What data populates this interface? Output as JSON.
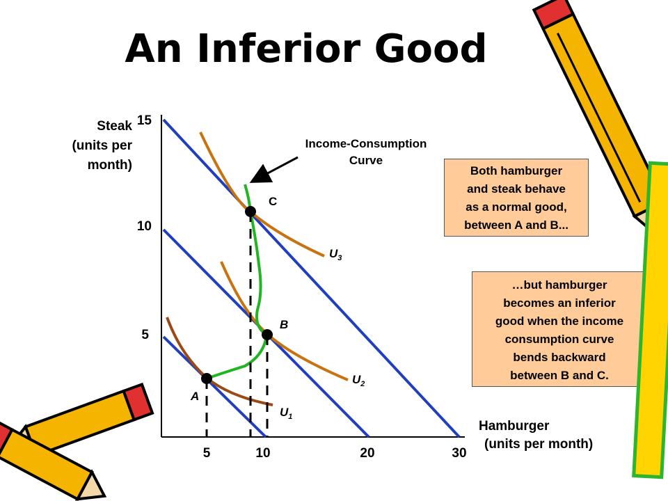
{
  "slide": {
    "title": "An Inferior Good"
  },
  "axes": {
    "y_label_lines": [
      "Steak",
      "(units per",
      "month)"
    ],
    "x_label_lines": [
      "Hamburger",
      "(units per month)"
    ],
    "y_ticks": [
      "15",
      "10",
      "5"
    ],
    "x_ticks": [
      "5",
      "10",
      "20",
      "30"
    ]
  },
  "curves": {
    "icc_label_lines": [
      "Income-Consumption",
      "Curve"
    ],
    "u1": {
      "base": "U",
      "sub": "1"
    },
    "u2": {
      "base": "U",
      "sub": "2"
    },
    "u3": {
      "base": "U",
      "sub": "3"
    }
  },
  "points": {
    "a": "A",
    "b": "B",
    "c": "C"
  },
  "notes": {
    "top": [
      "Both hamburger",
      "and steak behave",
      "as a normal good,",
      "between A and B..."
    ],
    "bottom": [
      "…but hamburger",
      "becomes an inferior",
      "good when the income",
      "consumption curve",
      "bends backward",
      "between B and C."
    ]
  },
  "colors": {
    "budget_line": "#1f3fbf",
    "indifference_curve": "#c8730f",
    "u1_curve": "#9a4a14",
    "income_consumption_curve": "#22b522",
    "note_fill": "#ffcc99"
  }
}
